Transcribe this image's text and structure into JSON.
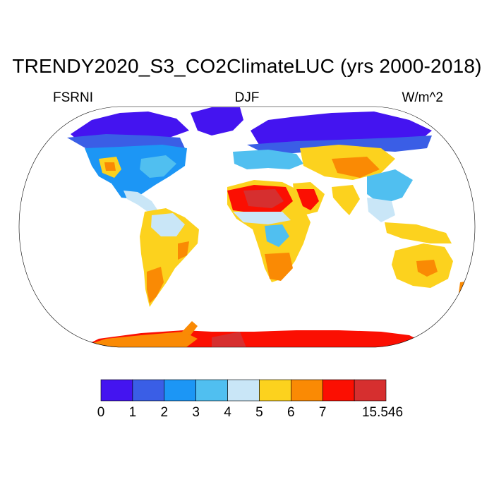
{
  "title": "TRENDY2020_S3_CO2ClimateLUC (yrs 2000-2018)",
  "left_label": "FSRNI",
  "center_label": "DJF",
  "right_label": "W/m^2",
  "colorbar": {
    "colors": [
      "#4414f0",
      "#3a5ee6",
      "#1c96f5",
      "#50bff0",
      "#c9e6f7",
      "#fcd21e",
      "#fa8a04",
      "#fb0f02",
      "#d62f2f"
    ],
    "labels": [
      "0",
      "1",
      "2",
      "3",
      "4",
      "5",
      "6",
      "7",
      "15.546"
    ]
  }
}
